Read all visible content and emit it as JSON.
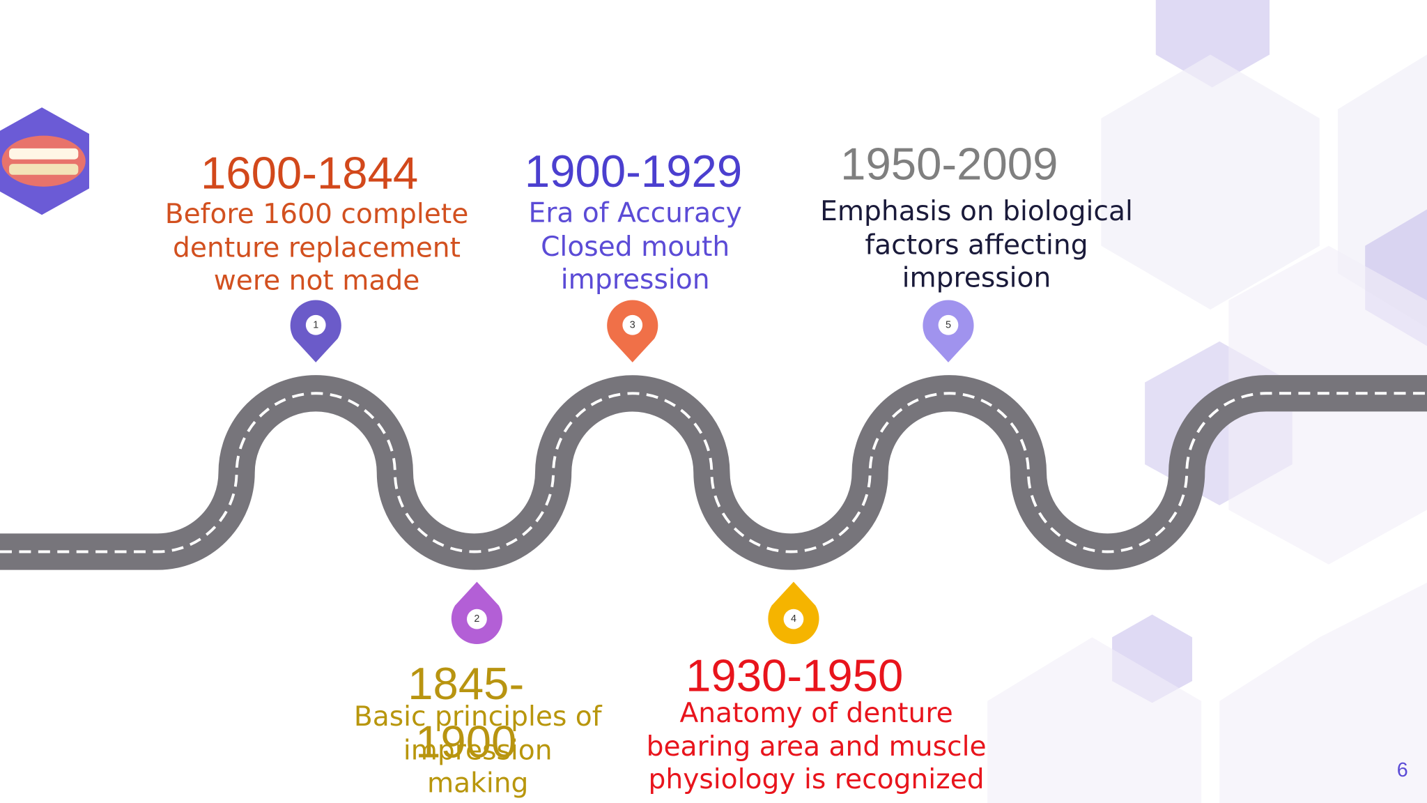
{
  "milestones": [
    {
      "number": "1",
      "period_lines": [
        "1600-1844"
      ],
      "description_lines": [
        "Before 1600 complete",
        "denture replacement",
        "were not made"
      ]
    },
    {
      "number": "2",
      "period_lines": [
        "1845-",
        "1900"
      ],
      "description_lines": [
        "Basic principles of",
        "impression",
        "making"
      ]
    },
    {
      "number": "3",
      "period_lines": [
        "1900-1929"
      ],
      "description_lines": [
        "Era of Accuracy",
        "Closed mouth",
        "impression"
      ]
    },
    {
      "number": "4",
      "period_lines": [
        "1930-1950"
      ],
      "description_lines": [
        "Anatomy of denture",
        "bearing area and muscle",
        "physiology is recognized"
      ]
    },
    {
      "number": "5",
      "period_lines": [
        "1950-2009"
      ],
      "description_lines": [
        "Emphasis on biological",
        "factors affecting",
        "impression"
      ]
    }
  ],
  "page_number": "6"
}
